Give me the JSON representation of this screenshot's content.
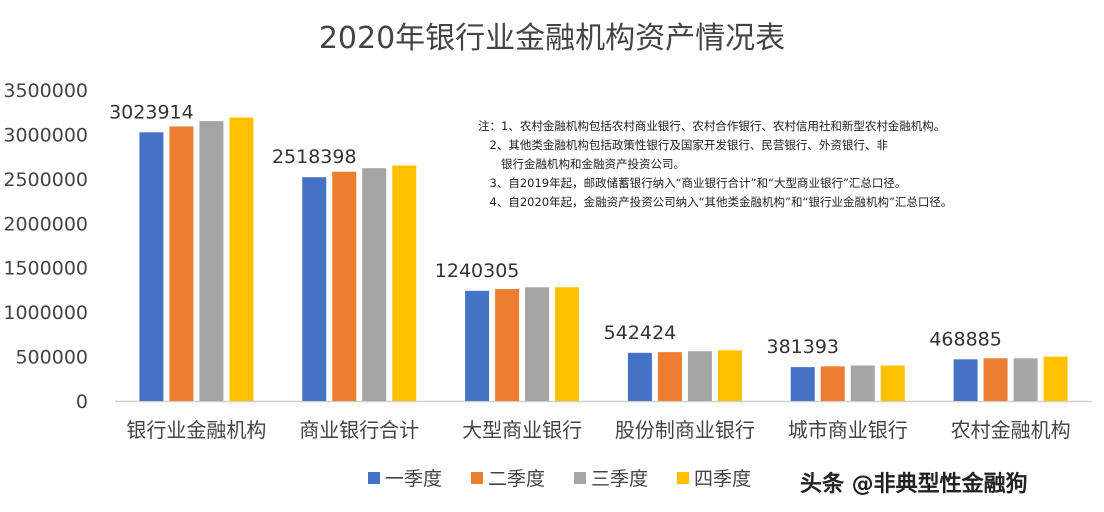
{
  "chart_data": {
    "type": "bar",
    "title": "2020年银行业金融机构资产情况表",
    "xlabel": "",
    "ylabel": "",
    "ylim": [
      0,
      3500000
    ],
    "yticks": [
      "0",
      "500000",
      "1000000",
      "1500000",
      "2000000",
      "2500000",
      "3000000",
      "3500000"
    ],
    "grid": false,
    "legend_position": "bottom",
    "categories": [
      "银行业金融机构",
      "商业银行合计",
      "大型商业银行",
      "股份制商业银行",
      "城市商业银行",
      "农村金融机构"
    ],
    "series": [
      {
        "name": "一季度",
        "color": "#4472C4",
        "values": [
          3023914,
          2518398,
          1240305,
          542424,
          381393,
          468885
        ]
      },
      {
        "name": "二季度",
        "color": "#ED7D31",
        "values": [
          3090000,
          2580000,
          1260000,
          550000,
          390000,
          480000
        ]
      },
      {
        "name": "三季度",
        "color": "#A5A5A5",
        "values": [
          3150000,
          2620000,
          1280000,
          560000,
          400000,
          480000
        ]
      },
      {
        "name": "四季度",
        "color": "#FFC000",
        "values": [
          3190000,
          2650000,
          1280000,
          570000,
          400000,
          500000
        ]
      }
    ],
    "data_labels": [
      "3023914",
      "2518398",
      "1240305",
      "542424",
      "381393",
      "468885"
    ],
    "notes": [
      "注：1、农村金融机构包括农村商业银行、农村合作银行、农村信用社和新型农村金融机构。",
      "　2、其他类金融机构包括政策性银行及国家开发银行、民营银行、外资银行、非",
      "　　银行金融机构和金融资产投资公司。",
      "　3、自2019年起，邮政储蓄银行纳入“商业银行合计”和“大型商业银行”汇总口径。",
      "　4、自2020年起，金融资产投资公司纳入“其他类金融机构”和“银行业金融机构”汇总口径。"
    ]
  },
  "watermark": "头条 @非典型性金融狗"
}
